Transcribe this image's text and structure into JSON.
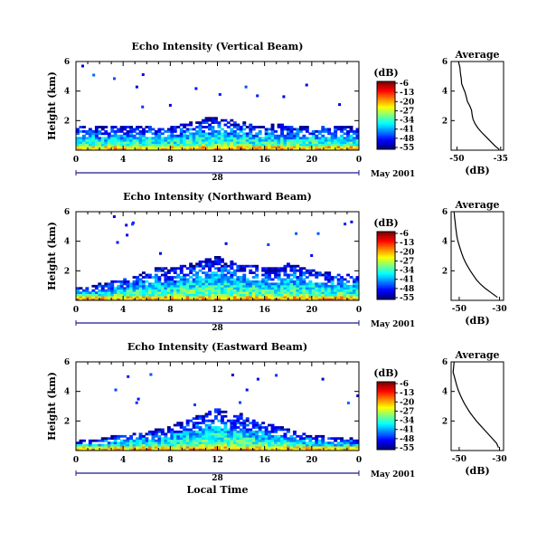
{
  "chart_data": [
    {
      "type": "heatmap",
      "title": "Echo Intensity (Vertical Beam)",
      "ylabel": "Height (km)",
      "xticks": [
        "0",
        "4",
        "8",
        "12",
        "16",
        "20",
        "0"
      ],
      "yticks": [
        "2",
        "4",
        "6"
      ],
      "ylim": [
        0,
        6
      ],
      "xlim": [
        0,
        24
      ],
      "day_label": "28",
      "date_label": "May 2001",
      "colorbar": {
        "unit": "(dB)",
        "ticks": [
          "-6",
          "-13",
          "-20",
          "-27",
          "-34",
          "-41",
          "-48",
          "-55"
        ]
      },
      "tops": [
        [
          0,
          1.5
        ],
        [
          1,
          1.6
        ],
        [
          2,
          1.5
        ],
        [
          3,
          1.6
        ],
        [
          4,
          1.6
        ],
        [
          5,
          1.5
        ],
        [
          6,
          1.6
        ],
        [
          7,
          1.6
        ],
        [
          8,
          1.6
        ],
        [
          9,
          1.7
        ],
        [
          10,
          1.9
        ],
        [
          11,
          2.1
        ],
        [
          12,
          2.1
        ],
        [
          13,
          2.0
        ],
        [
          14,
          1.9
        ],
        [
          15,
          1.6
        ],
        [
          16,
          1.6
        ],
        [
          17,
          1.7
        ],
        [
          18,
          1.6
        ],
        [
          19,
          1.6
        ],
        [
          20,
          1.6
        ],
        [
          21,
          1.6
        ],
        [
          22,
          1.6
        ],
        [
          23,
          1.5
        ],
        [
          24,
          1.5
        ]
      ],
      "average": {
        "title": "Average",
        "xlabel": "(dB)",
        "xticks": [
          "-50",
          "-35"
        ],
        "xlim": [
          -52,
          -34
        ],
        "yticks": [
          "2",
          "4",
          "6"
        ],
        "ylim": [
          0,
          6
        ],
        "x": [
          -49.5,
          -49,
          -48.8,
          -48.5,
          -48.4,
          -47.8,
          -47.2,
          -46.8,
          -46.4,
          -45.6,
          -45,
          -44.8,
          -44.5,
          -43.8,
          -42.8,
          -41.5,
          -40,
          -38.5,
          -37,
          -35.5
        ],
        "y": [
          6,
          5.6,
          5.2,
          4.8,
          4.5,
          4.2,
          3.9,
          3.6,
          3.3,
          3.0,
          2.7,
          2.4,
          2.1,
          1.8,
          1.5,
          1.2,
          0.9,
          0.6,
          0.3,
          0.05
        ]
      }
    },
    {
      "type": "heatmap",
      "title": "Echo Intensity (Northward Beam)",
      "ylabel": "Height (km)",
      "xticks": [
        "0",
        "4",
        "8",
        "12",
        "16",
        "20",
        "0"
      ],
      "yticks": [
        "2",
        "4",
        "6"
      ],
      "ylim": [
        0,
        6
      ],
      "xlim": [
        0,
        24
      ],
      "day_label": "28",
      "date_label": "May 2001",
      "colorbar": {
        "unit": "(dB)",
        "ticks": [
          "-6",
          "-13",
          "-20",
          "-27",
          "-34",
          "-41",
          "-48",
          "-55"
        ]
      },
      "tops": [
        [
          0,
          0.8
        ],
        [
          1,
          0.9
        ],
        [
          2,
          1.1
        ],
        [
          3,
          1.2
        ],
        [
          4,
          1.4
        ],
        [
          5,
          1.7
        ],
        [
          6,
          1.9
        ],
        [
          7,
          2.2
        ],
        [
          8,
          2.1
        ],
        [
          9,
          2.3
        ],
        [
          10,
          2.5
        ],
        [
          11,
          2.7
        ],
        [
          12,
          2.9
        ],
        [
          13,
          2.6
        ],
        [
          14,
          2.4
        ],
        [
          15,
          2.3
        ],
        [
          16,
          2.2
        ],
        [
          17,
          2.1
        ],
        [
          18,
          2.4
        ],
        [
          19,
          2.3
        ],
        [
          20,
          2.0
        ],
        [
          21,
          1.9
        ],
        [
          22,
          1.8
        ],
        [
          23,
          1.7
        ],
        [
          24,
          1.6
        ]
      ],
      "average": {
        "title": "Average",
        "xlabel": "(dB)",
        "xticks": [
          "-50",
          "-30"
        ],
        "xlim": [
          -54,
          -28
        ],
        "yticks": [
          "2",
          "4",
          "6"
        ],
        "ylim": [
          0,
          6
        ],
        "x": [
          -52.5,
          -52.3,
          -52,
          -51.8,
          -51.5,
          -51.2,
          -50.8,
          -50.2,
          -49.5,
          -48.8,
          -48,
          -47,
          -45.8,
          -44.5,
          -43,
          -41.5,
          -39.5,
          -37,
          -34,
          -31
        ],
        "y": [
          6,
          5.6,
          5.3,
          5.0,
          4.7,
          4.4,
          4.1,
          3.8,
          3.5,
          3.2,
          2.9,
          2.6,
          2.3,
          2.0,
          1.7,
          1.4,
          1.1,
          0.8,
          0.5,
          0.2
        ]
      }
    },
    {
      "type": "heatmap",
      "title": "Echo Intensity (Eastward Beam)",
      "ylabel": "Height (km)",
      "xticks": [
        "0",
        "4",
        "8",
        "12",
        "16",
        "20",
        "0"
      ],
      "yticks": [
        "2",
        "4",
        "6"
      ],
      "ylim": [
        0,
        6
      ],
      "xlim": [
        0,
        24
      ],
      "day_label": "28",
      "date_label": "May 2001",
      "xlabel": "Local Time",
      "colorbar": {
        "unit": "(dB)",
        "ticks": [
          "-6",
          "-13",
          "-20",
          "-27",
          "-34",
          "-41",
          "-48",
          "-55"
        ]
      },
      "tops": [
        [
          0,
          0.6
        ],
        [
          1,
          0.7
        ],
        [
          2,
          0.7
        ],
        [
          3,
          0.9
        ],
        [
          4,
          1.0
        ],
        [
          5,
          1.1
        ],
        [
          6,
          1.2
        ],
        [
          7,
          1.4
        ],
        [
          8,
          1.6
        ],
        [
          9,
          1.9
        ],
        [
          10,
          2.2
        ],
        [
          11,
          2.5
        ],
        [
          12,
          2.8
        ],
        [
          13,
          2.6
        ],
        [
          14,
          2.4
        ],
        [
          15,
          2.0
        ],
        [
          16,
          1.8
        ],
        [
          17,
          1.6
        ],
        [
          18,
          1.4
        ],
        [
          19,
          1.2
        ],
        [
          20,
          1.0
        ],
        [
          21,
          0.9
        ],
        [
          22,
          0.8
        ],
        [
          23,
          0.8
        ],
        [
          24,
          0.7
        ]
      ],
      "average": {
        "title": "Average",
        "xlabel": "(dB)",
        "xticks": [
          "-50",
          "-30"
        ],
        "xlim": [
          -54,
          -28
        ],
        "yticks": [
          "2",
          "4",
          "6"
        ],
        "ylim": [
          0,
          6
        ],
        "x": [
          -52.5,
          -52.8,
          -53,
          -52.4,
          -51.8,
          -51.2,
          -50.5,
          -49.6,
          -48.6,
          -47.5,
          -46.2,
          -44.8,
          -43.2,
          -41.5,
          -39.5,
          -37.5,
          -35.5,
          -33.5,
          -31.5,
          -30.5
        ],
        "y": [
          6,
          5.6,
          5.3,
          5.0,
          4.7,
          4.4,
          4.1,
          3.8,
          3.5,
          3.2,
          2.9,
          2.6,
          2.3,
          2.0,
          1.7,
          1.4,
          1.1,
          0.8,
          0.5,
          0.2
        ]
      }
    }
  ]
}
